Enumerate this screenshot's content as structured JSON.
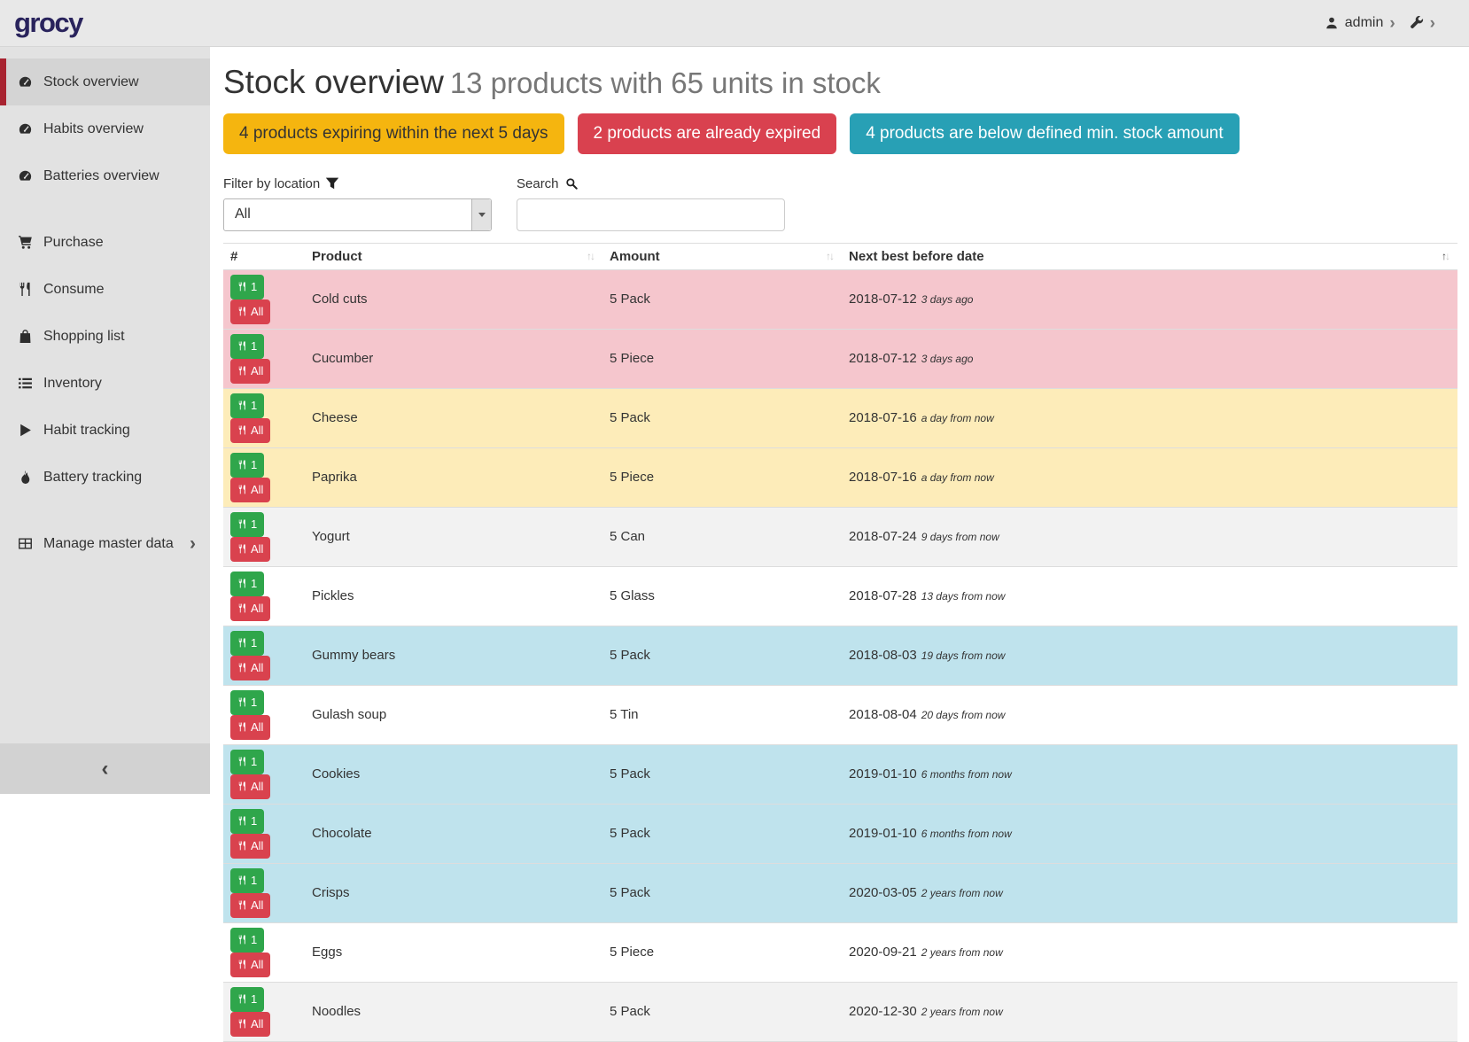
{
  "brand": {
    "logo_text": "grocy"
  },
  "topbar": {
    "user_label": "admin"
  },
  "sidebar": {
    "items": [
      {
        "label": "Stock overview",
        "icon": "gauge",
        "active": true
      },
      {
        "label": "Habits overview",
        "icon": "gauge"
      },
      {
        "label": "Batteries overview",
        "icon": "gauge"
      },
      {
        "label": "Purchase",
        "icon": "cart",
        "gap": true
      },
      {
        "label": "Consume",
        "icon": "utensils"
      },
      {
        "label": "Shopping list",
        "icon": "bag"
      },
      {
        "label": "Inventory",
        "icon": "list"
      },
      {
        "label": "Habit tracking",
        "icon": "play"
      },
      {
        "label": "Battery tracking",
        "icon": "flame"
      },
      {
        "label": "Manage master data",
        "icon": "table",
        "gap": true,
        "chevron": true
      }
    ]
  },
  "page": {
    "title": "Stock overview",
    "subtitle": "13 products with 65 units in stock",
    "badges": [
      {
        "text": "4 products expiring within the next 5 days",
        "type": "warning"
      },
      {
        "text": "2 products are already expired",
        "type": "danger"
      },
      {
        "text": "4 products are below defined min. stock amount",
        "type": "info"
      }
    ],
    "filter": {
      "label": "Filter by location",
      "value": "All"
    },
    "search": {
      "label": "Search",
      "value": ""
    }
  },
  "table": {
    "columns": [
      {
        "label": "#",
        "sort": null
      },
      {
        "label": "Product",
        "sort": "none"
      },
      {
        "label": "Amount",
        "sort": "none"
      },
      {
        "label": "Next best before date",
        "sort": "asc"
      }
    ],
    "row_buttons": [
      {
        "label": "1"
      },
      {
        "label": "All"
      }
    ],
    "rows": [
      {
        "product": "Cold cuts",
        "amount": "5 Pack",
        "date": "2018-07-12",
        "relative": "3 days ago",
        "status": "expired"
      },
      {
        "product": "Cucumber",
        "amount": "5 Piece",
        "date": "2018-07-12",
        "relative": "3 days ago",
        "status": "expired"
      },
      {
        "product": "Cheese",
        "amount": "5 Pack",
        "date": "2018-07-16",
        "relative": "a day from now",
        "status": "expiring"
      },
      {
        "product": "Paprika",
        "amount": "5 Piece",
        "date": "2018-07-16",
        "relative": "a day from now",
        "status": "expiring"
      },
      {
        "product": "Yogurt",
        "amount": "5 Can",
        "date": "2018-07-24",
        "relative": "9 days from now",
        "status": "none"
      },
      {
        "product": "Pickles",
        "amount": "5 Glass",
        "date": "2018-07-28",
        "relative": "13 days from now",
        "status": "none"
      },
      {
        "product": "Gummy bears",
        "amount": "5 Pack",
        "date": "2018-08-03",
        "relative": "19 days from now",
        "status": "belowmin"
      },
      {
        "product": "Gulash soup",
        "amount": "5 Tin",
        "date": "2018-08-04",
        "relative": "20 days from now",
        "status": "none"
      },
      {
        "product": "Cookies",
        "amount": "5 Pack",
        "date": "2019-01-10",
        "relative": "6 months from now",
        "status": "belowmin"
      },
      {
        "product": "Chocolate",
        "amount": "5 Pack",
        "date": "2019-01-10",
        "relative": "6 months from now",
        "status": "belowmin"
      },
      {
        "product": "Crisps",
        "amount": "5 Pack",
        "date": "2020-03-05",
        "relative": "2 years from now",
        "status": "belowmin"
      },
      {
        "product": "Eggs",
        "amount": "5 Piece",
        "date": "2020-09-21",
        "relative": "2 years from now",
        "status": "none"
      },
      {
        "product": "Noodles",
        "amount": "5 Pack",
        "date": "2020-12-30",
        "relative": "2 years from now",
        "status": "none"
      }
    ]
  },
  "colors": {
    "accent_red": "#a82330",
    "warning": "#f5b50f",
    "danger": "#d9414f",
    "info": "#28a0b5",
    "row_expired": "#f5c6cd",
    "row_expiring": "#fdecb9",
    "row_below_min": "#bfe3ed",
    "button_green": "#2fa64b",
    "button_red": "#d9424e"
  }
}
